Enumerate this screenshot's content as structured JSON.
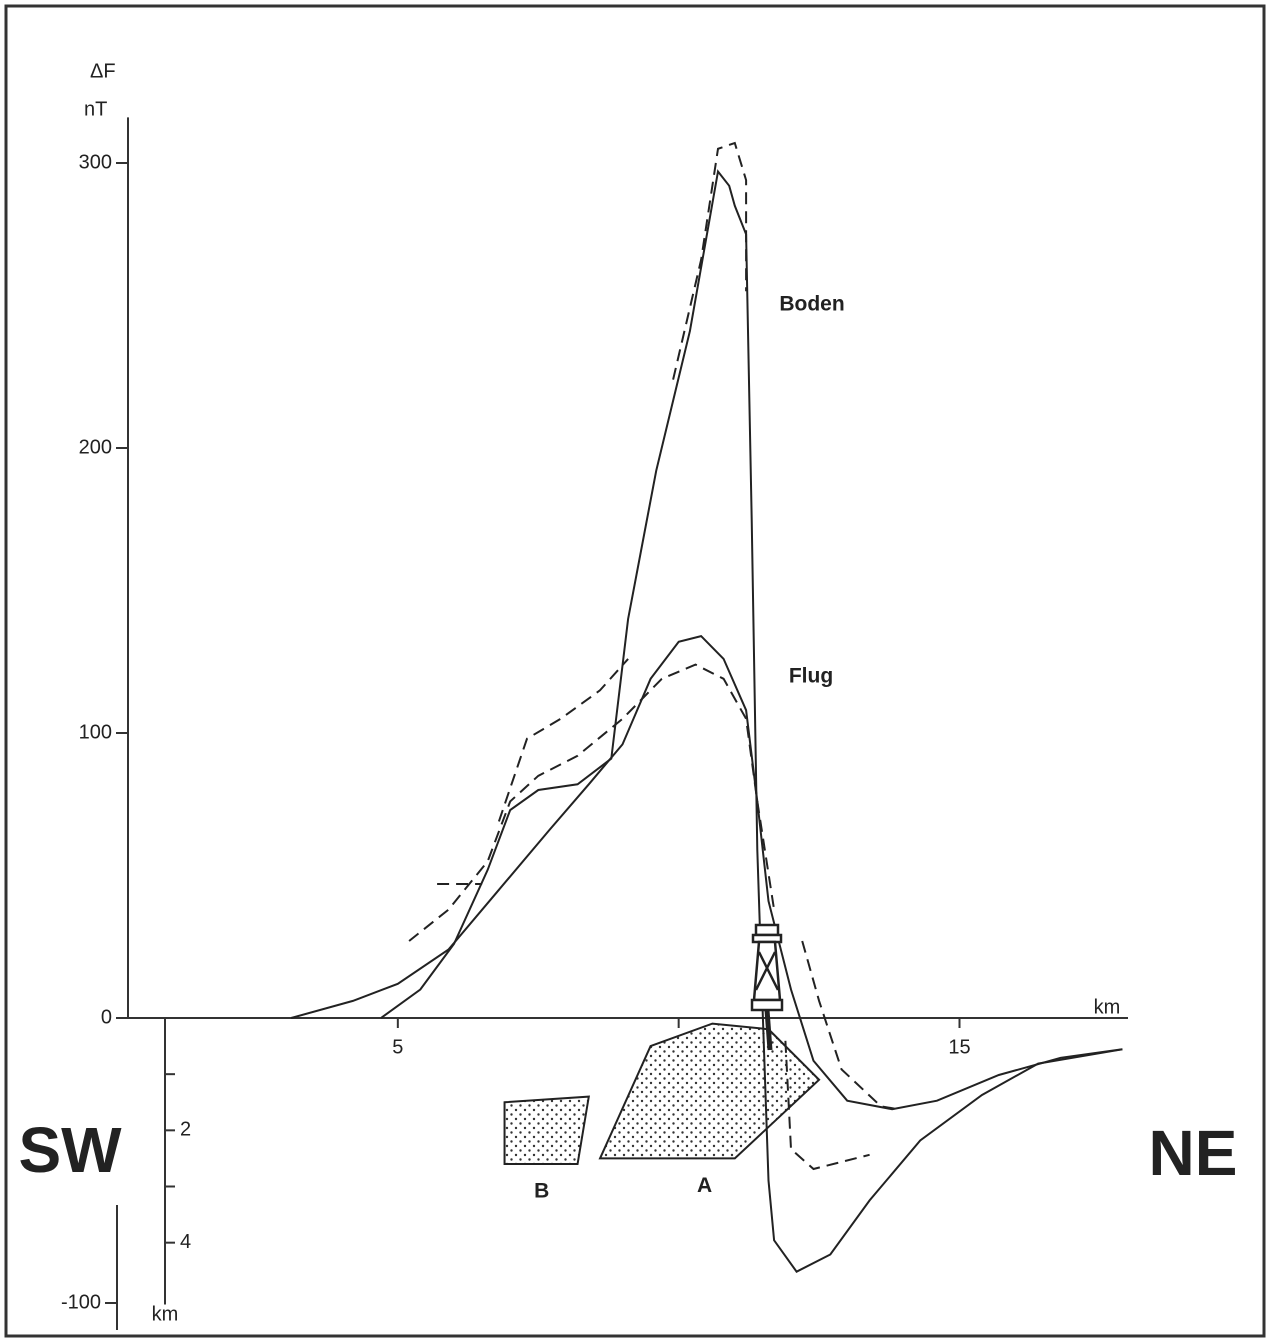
{
  "chart_data": {
    "type": "line",
    "ylabel": "ΔF",
    "yunit": "nT",
    "xlabel": "km",
    "xlim": [
      0,
      18
    ],
    "ylim": [
      -100,
      316
    ],
    "xticks": [
      5,
      15
    ],
    "x_minor_ticks": [
      10
    ],
    "yticks": [
      -100,
      0,
      100,
      200,
      300
    ],
    "depth_label": "km",
    "depth_lim": [
      0,
      5.1
    ],
    "depth_ticks": [
      2,
      4
    ],
    "depth_minor_ticks": [
      1,
      3
    ],
    "left_label": "SW",
    "right_label": "NE",
    "series": [
      {
        "name": "Boden",
        "color": "#222",
        "dash": false,
        "x": [
          4.7,
          5.4,
          6.0,
          6.6,
          7.0,
          7.5,
          8.2,
          8.8,
          9.1,
          9.6,
          10.2,
          10.7,
          10.9,
          11.0,
          11.2,
          11.3,
          11.4,
          11.5,
          11.6,
          11.7,
          12.1,
          12.7,
          13.4,
          14.3,
          15.4,
          16.4,
          17.9
        ],
        "values": [
          0,
          10,
          26,
          52,
          73,
          80,
          82,
          91,
          140,
          192,
          241,
          297,
          292,
          285,
          275,
          175,
          59,
          0,
          -57,
          -78,
          -89,
          -83,
          -64,
          -43,
          -27,
          -16,
          -11
        ]
      },
      {
        "name": "Flug",
        "color": "#222",
        "dash": false,
        "x": [
          3.1,
          4.2,
          5.0,
          5.9,
          6.8,
          7.7,
          8.4,
          9.0,
          9.5,
          10.0,
          10.4,
          10.8,
          11.2,
          11.4,
          11.6,
          12.0,
          12.4,
          13.0,
          13.8,
          14.6,
          15.7,
          16.8,
          17.9
        ],
        "values": [
          0,
          6,
          12,
          24,
          45,
          66,
          82,
          96,
          119,
          132,
          134,
          126,
          108,
          76,
          41,
          10,
          -15,
          -29,
          -32,
          -29,
          -20,
          -14,
          -11
        ]
      },
      {
        "color": "#222",
        "dash": true,
        "x": [
          5.7,
          6.5,
          null,
          6.8,
          7.3,
          7.9,
          8.6,
          9.1,
          null,
          9.9,
          10.4,
          10.7,
          11.0,
          11.2,
          11.2,
          null,
          11.9,
          12.0,
          12.4,
          13.4
        ],
        "values": [
          47,
          47,
          null,
          69,
          98,
          105,
          115,
          126,
          null,
          224,
          266,
          305,
          307,
          294,
          255,
          null,
          -8,
          -46,
          -53,
          -48
        ]
      },
      {
        "color": "#222",
        "dash": true,
        "x": [
          5.2,
          5.9,
          6.6,
          7.0,
          7.5,
          8.2,
          9.0,
          9.7,
          10.3,
          10.8,
          11.2,
          11.4,
          11.7,
          null,
          12.2,
          12.5,
          12.9,
          13.6,
          13.9
        ],
        "values": [
          27,
          38,
          55,
          76,
          85,
          92,
          105,
          119,
          124,
          119,
          105,
          76,
          38,
          null,
          27,
          6,
          -18,
          -31,
          -32
        ]
      }
    ],
    "bodies": [
      {
        "label": "A",
        "x": [
          9.5,
          10.6,
          11.6,
          12.5,
          11.0,
          8.6
        ],
        "depth": [
          0.5,
          0.1,
          0.2,
          1.1,
          2.5,
          2.5
        ]
      },
      {
        "label": "B",
        "x": [
          6.9,
          8.4,
          8.2,
          6.9
        ],
        "depth": [
          1.5,
          1.4,
          2.6,
          2.6
        ]
      }
    ]
  }
}
